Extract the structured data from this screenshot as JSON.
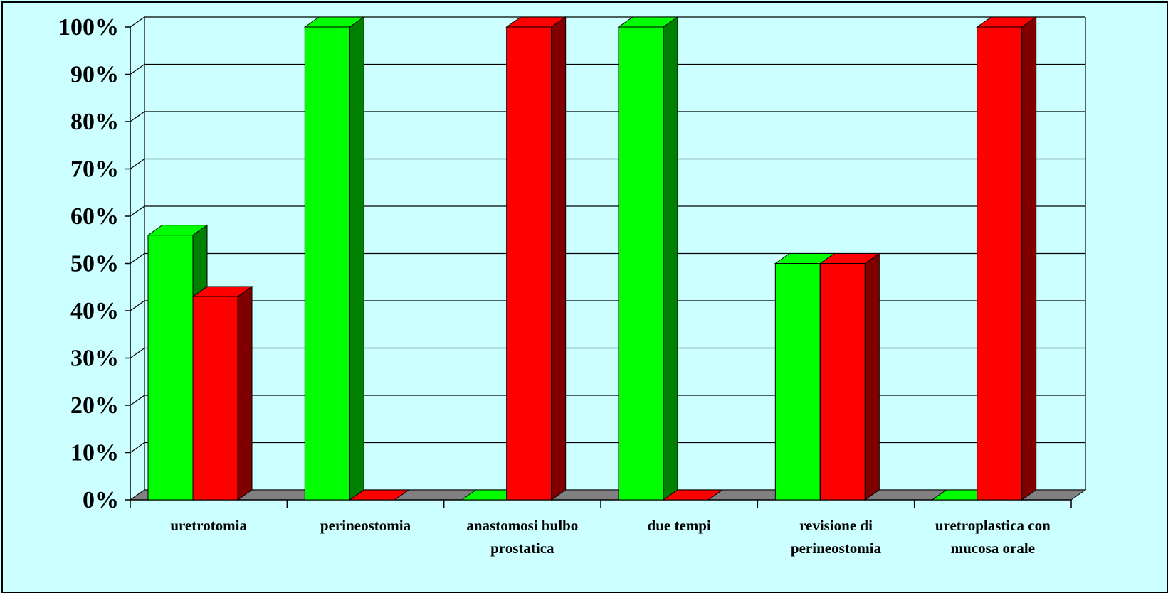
{
  "chart_data": {
    "type": "bar",
    "categories": [
      [
        "uretrotomia"
      ],
      [
        "perineostomia"
      ],
      [
        "anastomosi bulbo",
        "prostatica"
      ],
      [
        "due tempi"
      ],
      [
        "revisione di",
        "perineostomia"
      ],
      [
        "uretroplastica con",
        "mucosa orale"
      ]
    ],
    "series": [
      {
        "values": [
          56,
          100,
          0,
          100,
          50,
          0
        ],
        "color": "#00ff00",
        "side_color": "#008000"
      },
      {
        "values": [
          43,
          0,
          100,
          0,
          50,
          100
        ],
        "color": "#ff0000",
        "side_color": "#800000"
      }
    ],
    "ylim": [
      0,
      100
    ],
    "yticks": [
      "0%",
      "10%",
      "20%",
      "30%",
      "40%",
      "50%",
      "60%",
      "70%",
      "80%",
      "90%",
      "100%"
    ],
    "grid": true,
    "style": "3d-clustered-column",
    "colors": {
      "background": "#ccffff",
      "floor": "#808080",
      "grid": "#000000"
    }
  }
}
